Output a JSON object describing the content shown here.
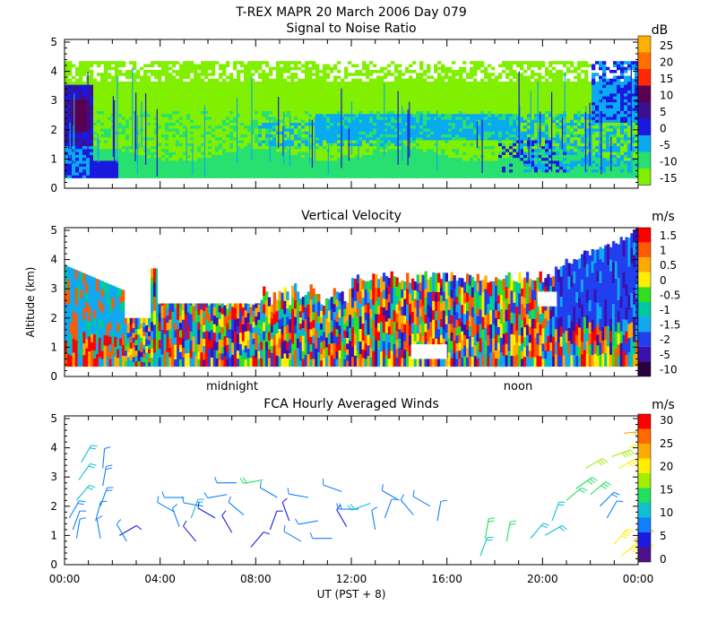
{
  "figure": {
    "title": "T-REX   MAPR 20 March 2006 Day 079",
    "xlabel": "UT  (PST + 8)",
    "x_ticks": [
      "00:00",
      "04:00",
      "08:00",
      "12:00",
      "16:00",
      "20:00",
      "00:00"
    ],
    "midnight_label": "midnight",
    "noon_label": "noon"
  },
  "chart_data": [
    {
      "type": "heatmap",
      "title": "Signal to Noise Ratio",
      "ylabel": "",
      "ylim": [
        0,
        5
      ],
      "y_ticks": [
        "0",
        "1",
        "2",
        "3",
        "4",
        "5"
      ],
      "x_range_hours": [
        0,
        24
      ],
      "colorbar": {
        "unit": "dB",
        "labels": [
          "25",
          "20",
          "15",
          "10",
          "5",
          "0",
          "-5",
          "-10",
          "-15"
        ],
        "colors": [
          "#ffb000",
          "#ff7000",
          "#ff2800",
          "#5a0050",
          "#3a1090",
          "#1a18e0",
          "#0aaaf0",
          "#28e070",
          "#80f000"
        ]
      },
      "features": [
        {
          "desc": "data gap below",
          "alt_km": 0.35
        },
        {
          "desc": "strong echo",
          "t_hours": [
            0.0,
            1.1
          ],
          "alt_km": [
            1.6,
            3.4
          ],
          "db": 10
        },
        {
          "desc": "enhanced layer",
          "t_hours": [
            10.5,
            19.0
          ],
          "alt_km": [
            1.6,
            2.5
          ],
          "db": -5
        },
        {
          "desc": "enhanced upper",
          "t_hours": [
            22.0,
            24.0
          ],
          "alt_km": [
            2.2,
            4.5
          ],
          "db": 0
        }
      ]
    },
    {
      "type": "heatmap",
      "title": "Vertical Velocity",
      "ylabel": "Altitude (km)",
      "ylim": [
        0,
        5
      ],
      "y_ticks": [
        "0",
        "1",
        "2",
        "3",
        "4",
        "5"
      ],
      "x_range_hours": [
        0,
        24
      ],
      "colorbar": {
        "unit": "m/s",
        "labels": [
          "1.5",
          "1",
          "0.5",
          "0",
          "-0.5",
          "-1",
          "-1.5",
          "-2",
          "-5",
          "-10"
        ],
        "colors": [
          "#ff0000",
          "#ff5a00",
          "#ffaa00",
          "#ffee00",
          "#30e020",
          "#00c8a0",
          "#10a8f0",
          "#2040f0",
          "#3a10b0",
          "#2a0040"
        ]
      }
    },
    {
      "type": "scatter",
      "title": "FCA Hourly Averaged Winds",
      "ylabel": "",
      "ylim": [
        0,
        5
      ],
      "y_ticks": [
        "0",
        "1",
        "2",
        "3",
        "4",
        "5"
      ],
      "x_range_hours": [
        0,
        24
      ],
      "colorbar": {
        "unit": "m/s",
        "labels": [
          "30",
          "25",
          "20",
          "15",
          "10",
          "5",
          "0"
        ],
        "colors": [
          "#ff0000",
          "#ff6a00",
          "#ffaa00",
          "#ffee00",
          "#a0f000",
          "#20e060",
          "#10c0d0",
          "#1080ff",
          "#1a1ae0",
          "#50108a"
        ]
      },
      "barbs": [
        {
          "t": 0.2,
          "alt": 1.6,
          "dir_deg": 30,
          "speed": 8
        },
        {
          "t": 0.35,
          "alt": 1.2,
          "dir_deg": 20,
          "speed": 7
        },
        {
          "t": 0.5,
          "alt": 0.9,
          "dir_deg": 10,
          "speed": 6
        },
        {
          "t": 0.5,
          "alt": 2.2,
          "dir_deg": 40,
          "speed": 10
        },
        {
          "t": 0.6,
          "alt": 2.9,
          "dir_deg": 35,
          "speed": 11
        },
        {
          "t": 0.7,
          "alt": 3.5,
          "dir_deg": 30,
          "speed": 11
        },
        {
          "t": 1.3,
          "alt": 1.5,
          "dir_deg": 15,
          "speed": 7
        },
        {
          "t": 1.5,
          "alt": 2.0,
          "dir_deg": 20,
          "speed": 8
        },
        {
          "t": 1.6,
          "alt": 2.7,
          "dir_deg": 10,
          "speed": 8
        },
        {
          "t": 1.6,
          "alt": 3.3,
          "dir_deg": 5,
          "speed": 6
        },
        {
          "t": 1.5,
          "alt": 0.9,
          "dir_deg": 350,
          "speed": 5
        },
        {
          "t": 2.3,
          "alt": 1.0,
          "dir_deg": 60,
          "speed": 4
        },
        {
          "t": 2.6,
          "alt": 0.8,
          "dir_deg": 330,
          "speed": 5
        },
        {
          "t": 4.6,
          "alt": 1.8,
          "dir_deg": 300,
          "speed": 6
        },
        {
          "t": 4.8,
          "alt": 1.3,
          "dir_deg": 340,
          "speed": 5
        },
        {
          "t": 5.0,
          "alt": 2.3,
          "dir_deg": 270,
          "speed": 5
        },
        {
          "t": 5.3,
          "alt": 1.6,
          "dir_deg": 20,
          "speed": 9
        },
        {
          "t": 5.5,
          "alt": 0.8,
          "dir_deg": 320,
          "speed": 4
        },
        {
          "t": 5.8,
          "alt": 2.0,
          "dir_deg": 280,
          "speed": 5
        },
        {
          "t": 6.3,
          "alt": 1.6,
          "dir_deg": 300,
          "speed": 4
        },
        {
          "t": 6.8,
          "alt": 2.4,
          "dir_deg": 260,
          "speed": 6
        },
        {
          "t": 7.2,
          "alt": 2.8,
          "dir_deg": 270,
          "speed": 7
        },
        {
          "t": 7.0,
          "alt": 1.1,
          "dir_deg": 330,
          "speed": 4
        },
        {
          "t": 7.5,
          "alt": 1.7,
          "dir_deg": 310,
          "speed": 5
        },
        {
          "t": 7.8,
          "alt": 0.6,
          "dir_deg": 40,
          "speed": 3
        },
        {
          "t": 8.3,
          "alt": 2.9,
          "dir_deg": 260,
          "speed": 12
        },
        {
          "t": 8.6,
          "alt": 1.2,
          "dir_deg": 20,
          "speed": 4
        },
        {
          "t": 8.9,
          "alt": 2.3,
          "dir_deg": 300,
          "speed": 5
        },
        {
          "t": 9.4,
          "alt": 1.5,
          "dir_deg": 340,
          "speed": 4
        },
        {
          "t": 9.9,
          "alt": 0.8,
          "dir_deg": 300,
          "speed": 5
        },
        {
          "t": 10.2,
          "alt": 2.3,
          "dir_deg": 280,
          "speed": 6
        },
        {
          "t": 10.6,
          "alt": 1.5,
          "dir_deg": 260,
          "speed": 6
        },
        {
          "t": 11.2,
          "alt": 0.9,
          "dir_deg": 270,
          "speed": 7
        },
        {
          "t": 11.6,
          "alt": 2.5,
          "dir_deg": 290,
          "speed": 5
        },
        {
          "t": 11.8,
          "alt": 1.3,
          "dir_deg": 330,
          "speed": 4
        },
        {
          "t": 12.3,
          "alt": 1.9,
          "dir_deg": 270,
          "speed": 8
        },
        {
          "t": 12.8,
          "alt": 2.1,
          "dir_deg": 250,
          "speed": 9
        },
        {
          "t": 13.0,
          "alt": 1.2,
          "dir_deg": 350,
          "speed": 5
        },
        {
          "t": 13.4,
          "alt": 1.6,
          "dir_deg": 20,
          "speed": 6
        },
        {
          "t": 14.0,
          "alt": 2.2,
          "dir_deg": 300,
          "speed": 7
        },
        {
          "t": 14.6,
          "alt": 1.7,
          "dir_deg": 320,
          "speed": 6
        },
        {
          "t": 15.3,
          "alt": 2.0,
          "dir_deg": 300,
          "speed": 7
        },
        {
          "t": 15.6,
          "alt": 1.5,
          "dir_deg": 10,
          "speed": 5
        },
        {
          "t": 17.4,
          "alt": 0.3,
          "dir_deg": 20,
          "speed": 10
        },
        {
          "t": 17.6,
          "alt": 0.9,
          "dir_deg": 10,
          "speed": 12
        },
        {
          "t": 18.5,
          "alt": 0.8,
          "dir_deg": 10,
          "speed": 12
        },
        {
          "t": 19.5,
          "alt": 0.9,
          "dir_deg": 40,
          "speed": 11
        },
        {
          "t": 20.1,
          "alt": 1.0,
          "dir_deg": 60,
          "speed": 9
        },
        {
          "t": 20.4,
          "alt": 1.5,
          "dir_deg": 20,
          "speed": 10
        },
        {
          "t": 21.0,
          "alt": 2.2,
          "dir_deg": 50,
          "speed": 12
        },
        {
          "t": 21.4,
          "alt": 2.6,
          "dir_deg": 55,
          "speed": 13
        },
        {
          "t": 21.8,
          "alt": 3.3,
          "dir_deg": 60,
          "speed": 16
        },
        {
          "t": 22.0,
          "alt": 2.4,
          "dir_deg": 50,
          "speed": 14
        },
        {
          "t": 22.4,
          "alt": 2.0,
          "dir_deg": 45,
          "speed": 8
        },
        {
          "t": 22.7,
          "alt": 1.6,
          "dir_deg": 30,
          "speed": 7
        },
        {
          "t": 22.9,
          "alt": 3.7,
          "dir_deg": 70,
          "speed": 18
        },
        {
          "t": 23.2,
          "alt": 3.3,
          "dir_deg": 60,
          "speed": 19
        },
        {
          "t": 23.4,
          "alt": 4.5,
          "dir_deg": 85,
          "speed": 22
        },
        {
          "t": 23.6,
          "alt": 4.0,
          "dir_deg": 70,
          "speed": 21
        },
        {
          "t": 23.0,
          "alt": 0.7,
          "dir_deg": 40,
          "speed": 20
        },
        {
          "t": 23.3,
          "alt": 0.3,
          "dir_deg": 50,
          "speed": 21
        },
        {
          "t": 23.8,
          "alt": 0.8,
          "dir_deg": 50,
          "speed": 22
        },
        {
          "t": 23.9,
          "alt": 0.2,
          "dir_deg": 40,
          "speed": 20
        }
      ]
    }
  ]
}
